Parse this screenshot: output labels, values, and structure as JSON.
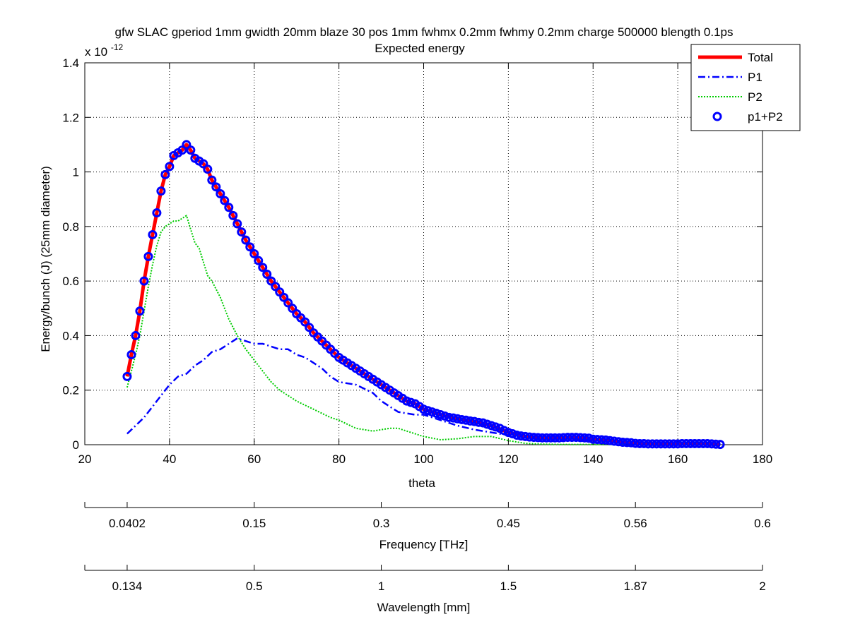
{
  "chart_data": {
    "type": "line",
    "title": "gfw SLAC gperiod 1mm gwidth 20mm blaze 30 pos 1mm fwhmx 0.2mm fwhmy 0.2mm charge 500000 blength 0.1ps",
    "subtitle": "Expected energy",
    "xlabel": "theta",
    "ylabel": "Energy/bunch (J)  (25mm diameter)",
    "y_multiplier": "x 10",
    "y_multiplier_exp": "-12",
    "xlim": [
      20,
      180
    ],
    "ylim": [
      0,
      1.4
    ],
    "x_ticks": [
      "20",
      "40",
      "60",
      "80",
      "100",
      "120",
      "140",
      "160",
      "180"
    ],
    "y_ticks": [
      "0",
      "0.2",
      "0.4",
      "0.6",
      "0.8",
      "1",
      "1.2",
      "1.4"
    ],
    "grid": "dotted",
    "legend_position": "top-right",
    "secondary_axes": [
      {
        "label": "Frequency [THz]",
        "ticks": [
          {
            "theta": 30,
            "label": "0.0402"
          },
          {
            "theta": 60,
            "label": "0.15"
          },
          {
            "theta": 90,
            "label": "0.3"
          },
          {
            "theta": 120,
            "label": "0.45"
          },
          {
            "theta": 150,
            "label": "0.56"
          },
          {
            "theta": 180,
            "label": "0.6"
          }
        ]
      },
      {
        "label": "Wavelength [mm]",
        "ticks": [
          {
            "theta": 30,
            "label": "0.134"
          },
          {
            "theta": 60,
            "label": "0.5"
          },
          {
            "theta": 90,
            "label": "1"
          },
          {
            "theta": 120,
            "label": "1.5"
          },
          {
            "theta": 150,
            "label": "1.87"
          },
          {
            "theta": 180,
            "label": "2"
          }
        ]
      }
    ],
    "series": [
      {
        "name": "Total",
        "color": "#ff0000",
        "style": "solid-thick",
        "x": [
          30,
          31,
          32,
          33,
          34,
          35,
          36,
          37,
          38,
          39,
          40,
          41,
          42,
          43,
          44,
          45,
          46,
          47,
          48,
          49,
          50,
          52,
          54,
          56,
          58,
          60,
          62,
          64,
          66,
          68,
          70,
          72,
          74,
          76,
          78,
          80,
          82,
          84,
          86,
          88,
          90,
          92,
          94,
          96,
          98,
          100,
          104,
          108,
          112,
          116,
          120,
          124,
          128,
          132,
          136,
          140,
          144,
          148,
          152,
          156,
          160,
          164,
          168,
          170
        ],
        "y": [
          0.25,
          0.33,
          0.4,
          0.49,
          0.6,
          0.69,
          0.77,
          0.85,
          0.93,
          0.99,
          1.02,
          1.06,
          1.07,
          1.08,
          1.1,
          1.08,
          1.05,
          1.04,
          1.03,
          1.01,
          0.97,
          0.92,
          0.87,
          0.81,
          0.75,
          0.7,
          0.65,
          0.6,
          0.56,
          0.52,
          0.48,
          0.45,
          0.41,
          0.38,
          0.35,
          0.32,
          0.3,
          0.28,
          0.26,
          0.24,
          0.22,
          0.2,
          0.18,
          0.16,
          0.15,
          0.13,
          0.11,
          0.095,
          0.085,
          0.07,
          0.045,
          0.03,
          0.025,
          0.025,
          0.025,
          0.02,
          0.015,
          0.008,
          0.005,
          0.003,
          0.003,
          0.004,
          0.003,
          0.001
        ]
      },
      {
        "name": "P1",
        "color": "#0000ff",
        "style": "dashdot",
        "x": [
          30,
          32,
          34,
          36,
          38,
          40,
          42,
          44,
          46,
          48,
          50,
          52,
          54,
          56,
          58,
          60,
          62,
          64,
          66,
          68,
          70,
          72,
          74,
          76,
          78,
          80,
          84,
          88,
          90,
          92,
          94,
          96,
          98,
          100,
          104,
          108,
          112,
          116,
          120,
          124,
          128,
          132,
          136,
          140,
          144,
          148,
          152,
          156,
          160,
          164,
          168,
          170
        ],
        "y": [
          0.04,
          0.07,
          0.1,
          0.14,
          0.18,
          0.22,
          0.25,
          0.26,
          0.29,
          0.31,
          0.34,
          0.35,
          0.37,
          0.39,
          0.38,
          0.37,
          0.37,
          0.36,
          0.35,
          0.35,
          0.33,
          0.32,
          0.3,
          0.28,
          0.25,
          0.23,
          0.22,
          0.19,
          0.16,
          0.14,
          0.12,
          0.115,
          0.11,
          0.11,
          0.09,
          0.07,
          0.055,
          0.045,
          0.035,
          0.025,
          0.02,
          0.02,
          0.02,
          0.015,
          0.012,
          0.008,
          0.005,
          0.003,
          0.003,
          0.003,
          0.002,
          0.001
        ]
      },
      {
        "name": "P2",
        "color": "#00cc00",
        "style": "dotted",
        "x": [
          30,
          31,
          32,
          33,
          34,
          35,
          36,
          37,
          38,
          39,
          40,
          41,
          42,
          43,
          44,
          45,
          46,
          47,
          48,
          49,
          50,
          52,
          54,
          56,
          58,
          60,
          62,
          64,
          66,
          68,
          70,
          74,
          78,
          80,
          82,
          84,
          86,
          88,
          90,
          92,
          94,
          96,
          100,
          104,
          108,
          112,
          116,
          120,
          124,
          128,
          132,
          140,
          150,
          160,
          170
        ],
        "y": [
          0.21,
          0.27,
          0.33,
          0.4,
          0.49,
          0.58,
          0.66,
          0.73,
          0.78,
          0.8,
          0.81,
          0.82,
          0.82,
          0.83,
          0.84,
          0.79,
          0.74,
          0.72,
          0.67,
          0.62,
          0.6,
          0.54,
          0.46,
          0.4,
          0.35,
          0.31,
          0.27,
          0.23,
          0.2,
          0.18,
          0.16,
          0.13,
          0.1,
          0.09,
          0.075,
          0.06,
          0.055,
          0.05,
          0.055,
          0.06,
          0.06,
          0.05,
          0.03,
          0.018,
          0.022,
          0.03,
          0.03,
          0.015,
          0.005,
          0.002,
          0.001,
          0.001,
          0.0,
          0.0,
          0.0
        ]
      },
      {
        "name": "p1+P2",
        "color": "#0000ff",
        "style": "circle-markers",
        "x": [
          30,
          31,
          32,
          33,
          34,
          35,
          36,
          37,
          38,
          39,
          40,
          41,
          42,
          43,
          44,
          45,
          46,
          47,
          48,
          49,
          50,
          51,
          52,
          53,
          54,
          55,
          56,
          57,
          58,
          59,
          60,
          61,
          62,
          63,
          64,
          65,
          66,
          67,
          68,
          69,
          70,
          71,
          72,
          73,
          74,
          75,
          76,
          77,
          78,
          79,
          80,
          81,
          82,
          83,
          84,
          85,
          86,
          87,
          88,
          89,
          90,
          91,
          92,
          93,
          94,
          95,
          96,
          97,
          98,
          99,
          100,
          101,
          102,
          103,
          104,
          105,
          106,
          107,
          108,
          109,
          110,
          111,
          112,
          113,
          114,
          115,
          116,
          117,
          118,
          119,
          120,
          121,
          122,
          123,
          124,
          125,
          126,
          127,
          128,
          129,
          130,
          131,
          132,
          133,
          134,
          135,
          136,
          137,
          138,
          139,
          140,
          141,
          142,
          143,
          144,
          145,
          146,
          147,
          148,
          149,
          150,
          151,
          152,
          153,
          154,
          155,
          156,
          157,
          158,
          159,
          160,
          161,
          162,
          163,
          164,
          165,
          166,
          167,
          168,
          169,
          170
        ],
        "y": [
          0.25,
          0.33,
          0.4,
          0.49,
          0.6,
          0.69,
          0.77,
          0.85,
          0.93,
          0.99,
          1.02,
          1.06,
          1.07,
          1.08,
          1.1,
          1.08,
          1.05,
          1.04,
          1.03,
          1.01,
          0.97,
          0.945,
          0.92,
          0.895,
          0.87,
          0.84,
          0.81,
          0.78,
          0.75,
          0.725,
          0.7,
          0.675,
          0.65,
          0.625,
          0.6,
          0.58,
          0.56,
          0.54,
          0.52,
          0.5,
          0.48,
          0.465,
          0.45,
          0.43,
          0.41,
          0.395,
          0.38,
          0.365,
          0.35,
          0.335,
          0.32,
          0.31,
          0.3,
          0.29,
          0.28,
          0.27,
          0.26,
          0.25,
          0.24,
          0.23,
          0.22,
          0.21,
          0.2,
          0.19,
          0.18,
          0.17,
          0.16,
          0.155,
          0.15,
          0.14,
          0.13,
          0.125,
          0.12,
          0.115,
          0.11,
          0.105,
          0.1,
          0.098,
          0.095,
          0.092,
          0.09,
          0.087,
          0.085,
          0.082,
          0.08,
          0.075,
          0.07,
          0.065,
          0.06,
          0.052,
          0.045,
          0.04,
          0.035,
          0.032,
          0.03,
          0.028,
          0.027,
          0.026,
          0.025,
          0.025,
          0.025,
          0.025,
          0.025,
          0.026,
          0.027,
          0.027,
          0.027,
          0.026,
          0.025,
          0.024,
          0.02,
          0.019,
          0.018,
          0.017,
          0.015,
          0.013,
          0.011,
          0.009,
          0.008,
          0.007,
          0.005,
          0.004,
          0.004,
          0.003,
          0.003,
          0.003,
          0.003,
          0.003,
          0.003,
          0.003,
          0.003,
          0.004,
          0.004,
          0.004,
          0.004,
          0.004,
          0.004,
          0.004,
          0.003,
          0.002,
          0.001
        ]
      }
    ]
  }
}
